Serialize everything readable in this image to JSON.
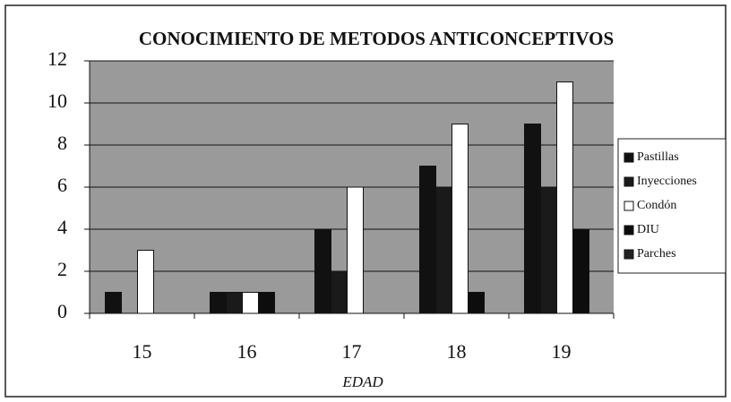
{
  "chart_data": {
    "type": "bar",
    "title": "CONOCIMIENTO DE METODOS ANTICONCEPTIVOS",
    "x_label": "EDAD",
    "categories": [
      "15",
      "16",
      "17",
      "18",
      "19"
    ],
    "series": [
      {
        "name": "Pastillas",
        "color": "#111111",
        "values": [
          1,
          1,
          4,
          7,
          9
        ]
      },
      {
        "name": "Inyecciones",
        "color": "#1a1a1a",
        "values": [
          0,
          1,
          2,
          6,
          6
        ]
      },
      {
        "name": "Condón",
        "color": "#ffffff",
        "values": [
          3,
          1,
          6,
          9,
          11
        ]
      },
      {
        "name": "DIU",
        "color": "#0d0d0d",
        "values": [
          0,
          1,
          0,
          1,
          4
        ]
      },
      {
        "name": "Parches",
        "color": "#222222",
        "values": [
          0,
          0,
          0,
          0,
          0
        ]
      }
    ],
    "ylim": [
      0,
      12
    ],
    "yticks": [
      0,
      2,
      4,
      6,
      8,
      10,
      12
    ],
    "grid": true,
    "legend": "right"
  }
}
